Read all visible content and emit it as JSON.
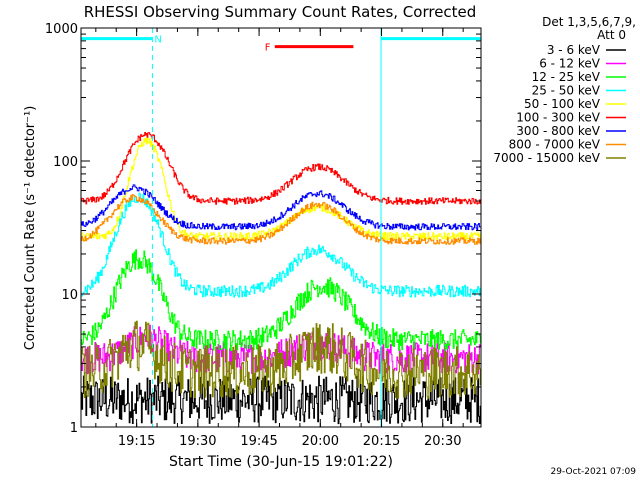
{
  "chart_data": {
    "type": "line",
    "title": "RHESSI Observing Summary Count Rates, Corrected",
    "xlabel": "Start Time (30-Jun-15 19:01:22)",
    "ylabel": "Corrected Count Rate (s⁻¹ detector⁻¹)",
    "yscale": "log",
    "ylim": [
      1,
      1000
    ],
    "xlim_minutes": [
      0,
      98
    ],
    "x_ticks": [
      {
        "t": 13.63,
        "label": "19:15"
      },
      {
        "t": 28.63,
        "label": "19:30"
      },
      {
        "t": 43.63,
        "label": "19:45"
      },
      {
        "t": 58.63,
        "label": "20:00"
      },
      {
        "t": 73.63,
        "label": "20:15"
      },
      {
        "t": 88.63,
        "label": "20:30"
      }
    ],
    "y_ticks": [
      {
        "v": 1,
        "label": "1"
      },
      {
        "v": 10,
        "label": "10"
      },
      {
        "v": 100,
        "label": "100"
      },
      {
        "v": 1000,
        "label": "1000"
      }
    ],
    "detector_info": [
      "Det 1,3,5,6,7,9,",
      "Att 0"
    ],
    "markers": {
      "night_label": "N",
      "flare_label": "F",
      "night_intervals": [
        [
          0,
          17.5
        ],
        [
          73.5,
          98
        ]
      ],
      "flare_interval": [
        46,
        66
      ],
      "vlines": [
        0,
        17.5,
        73.5,
        98
      ]
    },
    "series": [
      {
        "name": "3 - 6 keV",
        "color": "#000000",
        "base": 1.6,
        "peaks": [],
        "noise": 0.18
      },
      {
        "name": "6 - 12 keV",
        "color": "#ff00ff",
        "base": 3.3,
        "peaks": [
          {
            "t": 16,
            "amp": 1.3,
            "w": 6
          },
          {
            "t": 58,
            "amp": 0.9,
            "w": 8
          }
        ],
        "noise": 0.12
      },
      {
        "name": "12 - 25 keV",
        "color": "#00ff00",
        "base": 4.5,
        "peaks": [
          {
            "t": 14,
            "amp": 14,
            "w": 6
          },
          {
            "t": 59,
            "amp": 7,
            "w": 8
          }
        ],
        "noise": 0.08
      },
      {
        "name": "25 - 50 keV",
        "color": "#00ffff",
        "base": 10.5,
        "peaks": [
          {
            "t": 14,
            "amp": 43,
            "w": 6
          },
          {
            "t": 58,
            "amp": 11,
            "w": 8
          }
        ],
        "noise": 0.045
      },
      {
        "name": "50 - 100 keV",
        "color": "#ffff00",
        "base": 27,
        "peaks": [
          {
            "t": 16,
            "amp": 115,
            "w": 4.5
          },
          {
            "t": 58,
            "amp": 18,
            "w": 8
          }
        ],
        "noise": 0.03
      },
      {
        "name": "100 - 300 keV",
        "color": "#ff0000",
        "base": 50,
        "peaks": [
          {
            "t": 16,
            "amp": 108,
            "w": 6
          },
          {
            "t": 58,
            "amp": 40,
            "w": 8
          }
        ],
        "noise": 0.025
      },
      {
        "name": "300 - 800 keV",
        "color": "#0000ff",
        "base": 32,
        "peaks": [
          {
            "t": 13,
            "amp": 31,
            "w": 7
          },
          {
            "t": 58,
            "amp": 25,
            "w": 8
          }
        ],
        "noise": 0.025
      },
      {
        "name": "800 - 7000 keV",
        "color": "#ff8c00",
        "base": 25,
        "peaks": [
          {
            "t": 13,
            "amp": 28,
            "w": 7
          },
          {
            "t": 58,
            "amp": 22,
            "w": 8
          }
        ],
        "noise": 0.025
      },
      {
        "name": "7000 - 15000 keV",
        "color": "#808000",
        "base": 2.6,
        "peaks": [
          {
            "t": 14,
            "amp": 1.6,
            "w": 6
          },
          {
            "t": 59,
            "amp": 1.4,
            "w": 8
          }
        ],
        "noise": 0.2
      }
    ]
  },
  "timestamp": "29-Oct-2021 07:09"
}
